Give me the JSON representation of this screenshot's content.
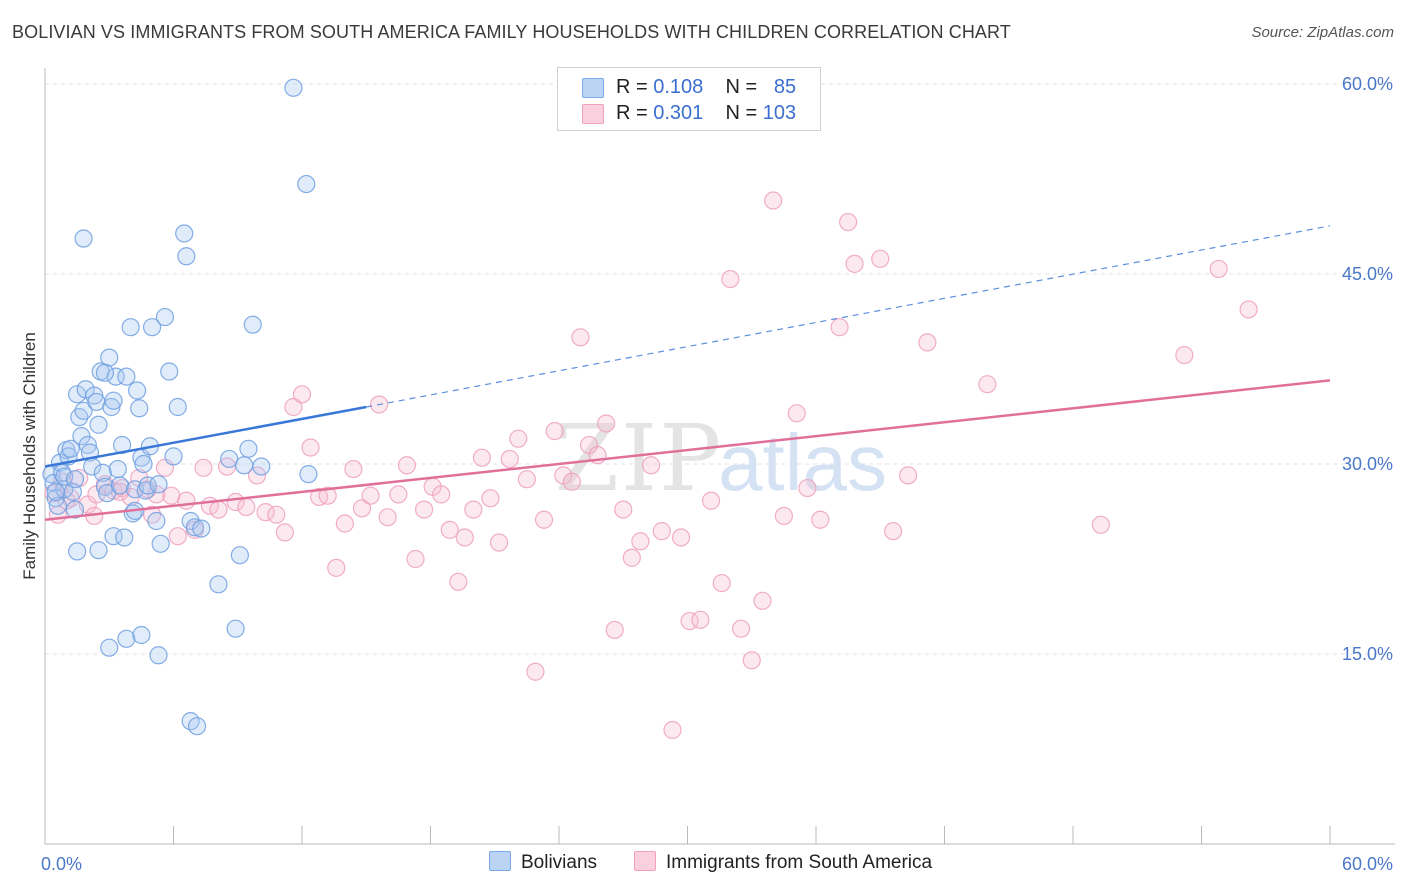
{
  "title": "BOLIVIAN VS IMMIGRANTS FROM SOUTH AMERICA FAMILY HOUSEHOLDS WITH CHILDREN CORRELATION CHART",
  "source": "Source: ZipAtlas.com",
  "watermark": {
    "zip": "ZIP",
    "atlas": "atlas"
  },
  "legend": {
    "r_label": "R =",
    "n_label": "N =",
    "rows": [
      {
        "r": "0.108",
        "n": "85"
      },
      {
        "r": "0.301",
        "n": "103"
      }
    ]
  },
  "chart_data": {
    "type": "scatter",
    "xlabel": "",
    "ylabel": "Family Households with Children",
    "xlim": [
      0,
      60
    ],
    "ylim": [
      0,
      60
    ],
    "x_tick_labels": [
      "0.0%",
      "60.0%"
    ],
    "y_ticks": [
      15,
      30,
      45,
      60
    ],
    "y_tick_labels": [
      "15.0%",
      "30.0%",
      "45.0%",
      "60.0%"
    ],
    "grid": "horizontal dashed",
    "legend_position": "top-center",
    "series": [
      {
        "name": "Bolivians",
        "color": "#7aaae8",
        "trend": {
          "x0": 0,
          "y0": 29.8,
          "x1": 15,
          "y1": 34.5,
          "dashed_to_x": 60,
          "dashed_to_y": 48.8
        },
        "points": [
          [
            0.3,
            29.2
          ],
          [
            0.4,
            28.5
          ],
          [
            0.5,
            27.3
          ],
          [
            0.6,
            26.7
          ],
          [
            0.7,
            30.1
          ],
          [
            0.8,
            29.3
          ],
          [
            0.9,
            28.0
          ],
          [
            1.0,
            31.1
          ],
          [
            1.1,
            30.6
          ],
          [
            1.2,
            31.2
          ],
          [
            1.3,
            27.8
          ],
          [
            1.4,
            26.4
          ],
          [
            1.5,
            35.5
          ],
          [
            1.6,
            33.7
          ],
          [
            1.7,
            32.2
          ],
          [
            1.8,
            34.2
          ],
          [
            1.9,
            35.9
          ],
          [
            2.0,
            31.5
          ],
          [
            2.1,
            30.9
          ],
          [
            2.2,
            29.8
          ],
          [
            2.3,
            35.4
          ],
          [
            2.4,
            34.9
          ],
          [
            2.5,
            33.1
          ],
          [
            2.6,
            37.3
          ],
          [
            2.7,
            29.3
          ],
          [
            2.8,
            28.2
          ],
          [
            2.9,
            27.7
          ],
          [
            3.0,
            38.4
          ],
          [
            3.1,
            34.5
          ],
          [
            3.2,
            35.0
          ],
          [
            3.3,
            36.9
          ],
          [
            3.4,
            29.6
          ],
          [
            3.5,
            28.3
          ],
          [
            3.6,
            31.5
          ],
          [
            3.8,
            36.9
          ],
          [
            4.0,
            40.8
          ],
          [
            4.1,
            26.1
          ],
          [
            4.2,
            28.0
          ],
          [
            4.3,
            35.8
          ],
          [
            4.4,
            34.4
          ],
          [
            4.5,
            30.5
          ],
          [
            4.6,
            30.0
          ],
          [
            4.7,
            27.9
          ],
          [
            4.8,
            28.3
          ],
          [
            4.9,
            31.4
          ],
          [
            5.0,
            40.8
          ],
          [
            5.2,
            25.5
          ],
          [
            5.3,
            28.4
          ],
          [
            5.4,
            23.7
          ],
          [
            5.6,
            41.6
          ],
          [
            5.8,
            37.3
          ],
          [
            6.0,
            30.6
          ],
          [
            6.2,
            34.5
          ],
          [
            6.5,
            48.2
          ],
          [
            6.6,
            46.4
          ],
          [
            6.8,
            25.5
          ],
          [
            7.0,
            25.0
          ],
          [
            8.1,
            20.5
          ],
          [
            8.6,
            30.4
          ],
          [
            8.9,
            17.0
          ],
          [
            9.1,
            22.8
          ],
          [
            9.3,
            29.9
          ],
          [
            9.5,
            31.2
          ],
          [
            9.7,
            41.0
          ],
          [
            10.1,
            29.8
          ],
          [
            11.6,
            59.7
          ],
          [
            12.2,
            52.1
          ],
          [
            12.3,
            29.2
          ],
          [
            1.5,
            23.1
          ],
          [
            2.5,
            23.2
          ],
          [
            3.2,
            24.3
          ],
          [
            3.7,
            24.2
          ],
          [
            3.0,
            15.5
          ],
          [
            3.8,
            16.2
          ],
          [
            4.5,
            16.5
          ],
          [
            5.3,
            14.9
          ],
          [
            6.8,
            9.7
          ],
          [
            7.1,
            9.3
          ],
          [
            1.8,
            47.8
          ],
          [
            0.9,
            29.0
          ],
          [
            0.5,
            27.8
          ],
          [
            1.4,
            28.8
          ],
          [
            2.8,
            37.2
          ],
          [
            4.2,
            26.3
          ],
          [
            7.3,
            24.9
          ]
        ]
      },
      {
        "name": "Immigrants from South America",
        "color": "#f0a0bc",
        "trend": {
          "x0": 0,
          "y0": 25.6,
          "x1": 60,
          "y1": 36.6
        },
        "points": [
          [
            0.4,
            27.7
          ],
          [
            0.8,
            28.6
          ],
          [
            1.2,
            27.3
          ],
          [
            1.6,
            28.9
          ],
          [
            2.0,
            26.8
          ],
          [
            2.4,
            27.6
          ],
          [
            2.8,
            28.4
          ],
          [
            3.2,
            27.9
          ],
          [
            3.6,
            28.1
          ],
          [
            4.0,
            27.4
          ],
          [
            4.4,
            28.9
          ],
          [
            4.8,
            28.0
          ],
          [
            5.2,
            27.6
          ],
          [
            5.6,
            29.7
          ],
          [
            5.9,
            27.5
          ],
          [
            6.2,
            24.3
          ],
          [
            6.6,
            27.1
          ],
          [
            7.0,
            24.8
          ],
          [
            7.4,
            29.7
          ],
          [
            7.7,
            26.7
          ],
          [
            8.1,
            26.4
          ],
          [
            8.5,
            29.8
          ],
          [
            8.9,
            27.0
          ],
          [
            9.4,
            26.6
          ],
          [
            9.9,
            29.1
          ],
          [
            10.3,
            26.2
          ],
          [
            10.8,
            26.0
          ],
          [
            11.2,
            24.6
          ],
          [
            11.6,
            34.5
          ],
          [
            12.0,
            35.5
          ],
          [
            12.4,
            31.3
          ],
          [
            12.8,
            27.4
          ],
          [
            13.2,
            27.5
          ],
          [
            13.6,
            21.8
          ],
          [
            14.0,
            25.3
          ],
          [
            14.4,
            29.6
          ],
          [
            14.8,
            26.5
          ],
          [
            15.2,
            27.5
          ],
          [
            15.6,
            34.7
          ],
          [
            16.0,
            25.8
          ],
          [
            16.5,
            27.6
          ],
          [
            16.9,
            29.9
          ],
          [
            17.3,
            22.5
          ],
          [
            17.7,
            26.4
          ],
          [
            18.1,
            28.2
          ],
          [
            18.5,
            27.6
          ],
          [
            18.9,
            24.8
          ],
          [
            19.3,
            20.7
          ],
          [
            19.6,
            24.2
          ],
          [
            20.0,
            26.4
          ],
          [
            20.4,
            30.5
          ],
          [
            20.8,
            27.3
          ],
          [
            21.2,
            23.8
          ],
          [
            21.7,
            30.4
          ],
          [
            22.1,
            32.0
          ],
          [
            22.5,
            28.8
          ],
          [
            22.9,
            13.6
          ],
          [
            23.3,
            25.6
          ],
          [
            23.8,
            32.6
          ],
          [
            24.2,
            29.1
          ],
          [
            24.6,
            28.6
          ],
          [
            25.0,
            40.0
          ],
          [
            25.4,
            31.5
          ],
          [
            25.8,
            30.7
          ],
          [
            26.2,
            33.2
          ],
          [
            26.6,
            16.9
          ],
          [
            27.0,
            26.4
          ],
          [
            27.4,
            22.6
          ],
          [
            27.8,
            23.9
          ],
          [
            28.3,
            29.9
          ],
          [
            28.8,
            24.7
          ],
          [
            29.3,
            9.0
          ],
          [
            29.7,
            24.2
          ],
          [
            30.1,
            17.6
          ],
          [
            30.6,
            17.7
          ],
          [
            31.1,
            27.1
          ],
          [
            31.6,
            20.6
          ],
          [
            32.0,
            44.6
          ],
          [
            32.5,
            17.0
          ],
          [
            33.0,
            14.5
          ],
          [
            33.5,
            19.2
          ],
          [
            34.0,
            50.8
          ],
          [
            34.5,
            25.9
          ],
          [
            35.1,
            34.0
          ],
          [
            35.6,
            28.1
          ],
          [
            36.2,
            25.6
          ],
          [
            37.1,
            40.8
          ],
          [
            37.5,
            49.1
          ],
          [
            37.8,
            45.8
          ],
          [
            39.0,
            46.2
          ],
          [
            39.6,
            24.7
          ],
          [
            40.3,
            29.1
          ],
          [
            41.2,
            39.6
          ],
          [
            44.0,
            36.3
          ],
          [
            49.3,
            25.2
          ],
          [
            53.2,
            38.6
          ],
          [
            54.8,
            45.4
          ],
          [
            56.2,
            42.2
          ],
          [
            0.6,
            26.0
          ],
          [
            1.0,
            27.1
          ],
          [
            2.3,
            25.9
          ],
          [
            3.5,
            27.8
          ],
          [
            5.0,
            26.0
          ]
        ]
      }
    ]
  }
}
